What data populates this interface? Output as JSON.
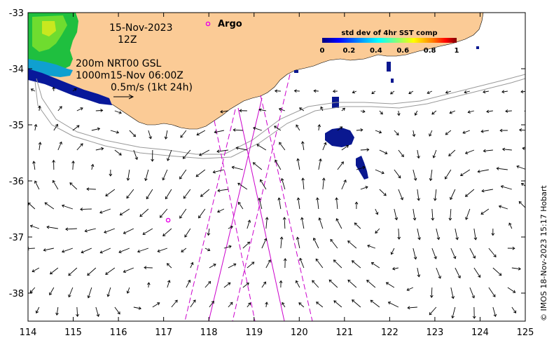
{
  "map": {
    "date": "15-Nov-2023",
    "hour": "12Z",
    "isobath_label": "200m  NRT00 GSL",
    "isobath_label2": "1000m15-Nov 06:00Z",
    "vector_scale_label": "0.5m/s (1kt 24h)",
    "argo_label": "Argo",
    "credit": "© IMOS 18-Nov-2023 15:17 Hobart"
  },
  "colorbar": {
    "title": "std dev of 4hr SST comp",
    "ticks": [
      "0",
      "0.2",
      "0.4",
      "0.6",
      "0.8",
      "1"
    ],
    "colors": [
      "#00007f",
      "#0000ff",
      "#007fff",
      "#00ffff",
      "#7fff7f",
      "#ffff00",
      "#ff7f00",
      "#ff0000",
      "#7f0000"
    ]
  },
  "axes": {
    "lon_ticks": [
      "114",
      "115",
      "116",
      "117",
      "118",
      "119",
      "120",
      "121",
      "122",
      "123",
      "124",
      "125"
    ],
    "lat_ticks": [
      "-33",
      "-34",
      "-35",
      "-36",
      "-37",
      "-38"
    ],
    "lon_range": [
      114,
      125
    ],
    "lat_range": [
      -38.5,
      -33
    ]
  },
  "colors": {
    "land": "#fbcb96",
    "argo": "#e800e8",
    "track": "#cc00cc",
    "isobath": "#999999"
  },
  "argo_float": {
    "lon": 117.1,
    "lat": -36.7
  }
}
